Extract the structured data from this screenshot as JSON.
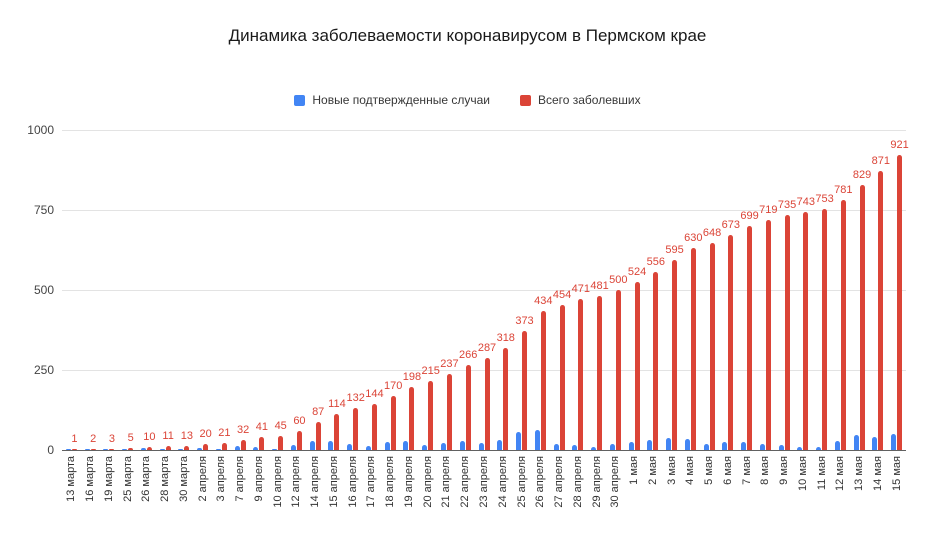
{
  "title": "Динамика заболеваемости коронавирусом в Пермском крае",
  "legend": [
    {
      "label": "Новые подтвержденные случаи",
      "color": "#4285F4"
    },
    {
      "label": "Всего заболевших",
      "color": "#DB4437"
    }
  ],
  "axis": {
    "y_tick_labels": [
      "0",
      "250",
      "500",
      "750",
      "1000"
    ]
  },
  "chart_data": {
    "type": "bar",
    "title": "Динамика заболеваемости коронавирусом в Пермском крае",
    "xlabel": "",
    "ylabel": "",
    "ylim": [
      0,
      1000
    ],
    "y_ticks": [
      0,
      250,
      500,
      750,
      1000
    ],
    "grid": true,
    "legend_position": "top",
    "categories": [
      "13 марта",
      "16 марта",
      "19 марта",
      "25 марта",
      "26 марта",
      "28 марта",
      "30 марта",
      "2 апреля",
      "3 апреля",
      "7 апреля",
      "9 апреля",
      "10 апреля",
      "12 апреля",
      "14 апреля",
      "15 апреля",
      "16 апреля",
      "17 апреля",
      "18 апреля",
      "19 апреля",
      "20 апреля",
      "21 апреля",
      "22 апреля",
      "23 апреля",
      "24 апреля",
      "25 апреля",
      "26 апреля",
      "27 апреля",
      "28 апреля",
      "29 апреля",
      "30 апреля",
      "1 мая",
      "2 мая",
      "3 мая",
      "4 мая",
      "5 мая",
      "6 мая",
      "7 мая",
      "8 мая",
      "9 мая",
      "10 мая",
      "11 мая",
      "12 мая",
      "13 мая",
      "14 мая",
      "15 мая"
    ],
    "series": [
      {
        "name": "Новые подтвержденные случаи",
        "color": "#4285F4",
        "data_labels": false,
        "values": [
          1,
          1,
          1,
          2,
          5,
          1,
          2,
          7,
          1,
          11,
          9,
          4,
          15,
          27,
          27,
          18,
          12,
          26,
          28,
          17,
          22,
          29,
          21,
          31,
          55,
          61,
          20,
          17,
          10,
          19,
          24,
          32,
          39,
          35,
          18,
          25,
          26,
          20,
          16,
          8,
          10,
          28,
          48,
          42,
          50
        ]
      },
      {
        "name": "Всего заболевших",
        "color": "#DB4437",
        "data_labels": true,
        "values": [
          1,
          2,
          3,
          5,
          10,
          11,
          13,
          20,
          21,
          32,
          41,
          45,
          60,
          87,
          114,
          132,
          144,
          170,
          198,
          215,
          237,
          266,
          287,
          318,
          373,
          434,
          454,
          471,
          481,
          500,
          524,
          556,
          595,
          630,
          648,
          673,
          699,
          719,
          735,
          743,
          753,
          781,
          829,
          871,
          921
        ]
      }
    ]
  }
}
